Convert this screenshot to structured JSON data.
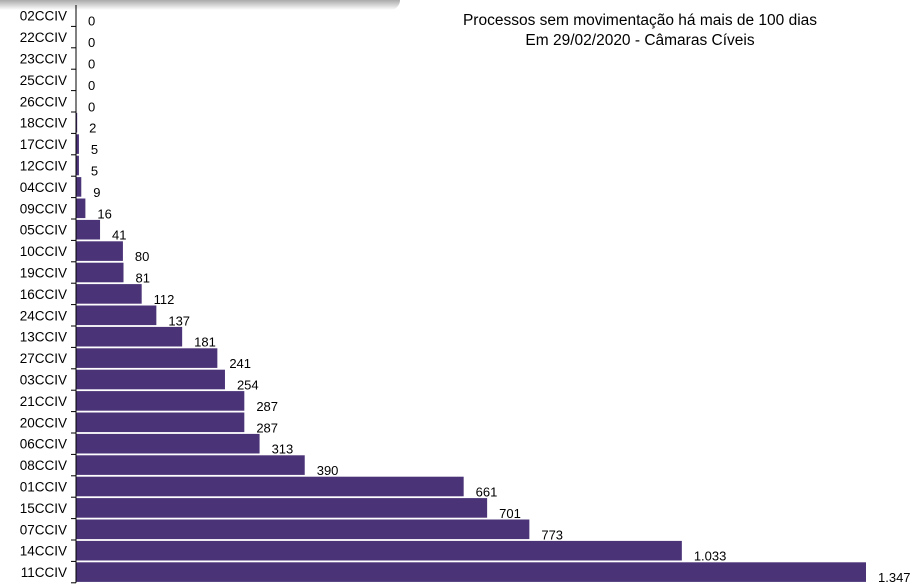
{
  "chart_data": {
    "type": "bar",
    "orientation": "horizontal",
    "title": "Processos sem movimentação há mais de 100 dias",
    "subtitle": "Em 29/02/2020 - Câmaras Cíveis",
    "categories": [
      "02CCIV",
      "22CCIV",
      "23CCIV",
      "25CCIV",
      "26CCIV",
      "18CCIV",
      "17CCIV",
      "12CCIV",
      "04CCIV",
      "09CCIV",
      "05CCIV",
      "10CCIV",
      "19CCIV",
      "16CCIV",
      "24CCIV",
      "13CCIV",
      "27CCIV",
      "03CCIV",
      "21CCIV",
      "20CCIV",
      "06CCIV",
      "08CCIV",
      "01CCIV",
      "15CCIV",
      "07CCIV",
      "14CCIV",
      "11CCIV"
    ],
    "values": [
      0,
      0,
      0,
      0,
      0,
      2,
      5,
      5,
      9,
      16,
      41,
      80,
      81,
      112,
      137,
      181,
      241,
      254,
      287,
      287,
      313,
      390,
      661,
      701,
      773,
      1033,
      1347
    ],
    "value_labels": [
      "0",
      "0",
      "0",
      "0",
      "0",
      "2",
      "5",
      "5",
      "9",
      "16",
      "41",
      "80",
      "81",
      "112",
      "137",
      "181",
      "241",
      "254",
      "287",
      "287",
      "313",
      "390",
      "661",
      "701",
      "773",
      "1.033",
      "1.347"
    ],
    "bar_color": "#4b3378",
    "xlim": [
      0,
      1347
    ],
    "grid": false,
    "legend": "none"
  }
}
